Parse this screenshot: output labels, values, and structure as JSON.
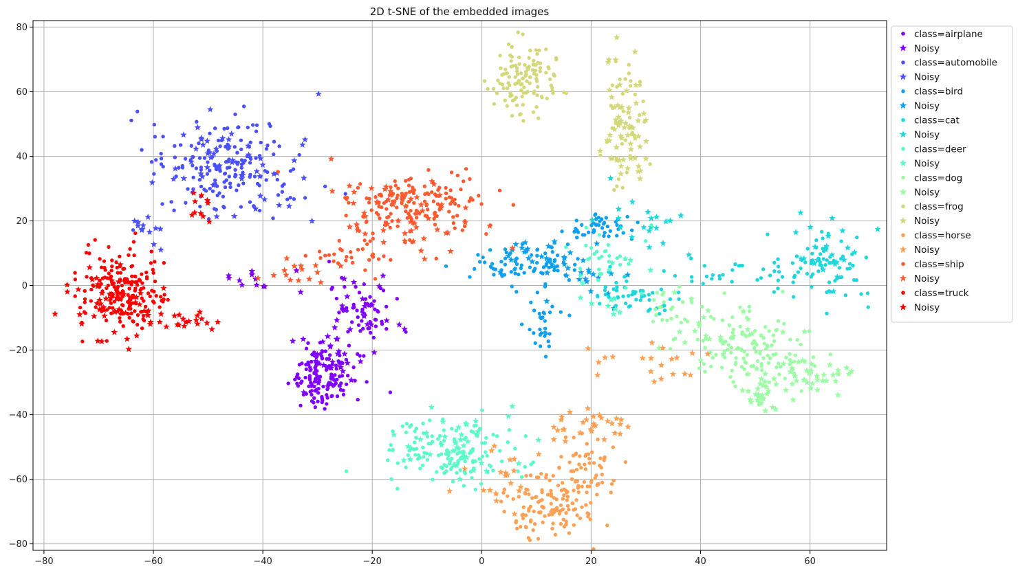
{
  "chart_data": {
    "type": "scatter",
    "title": "2D t-SNE of the embedded images",
    "xlabel": "",
    "ylabel": "",
    "xlim": [
      -82,
      74
    ],
    "ylim": [
      -82,
      82
    ],
    "xticks": [
      -80,
      -60,
      -40,
      -20,
      0,
      20,
      40,
      60
    ],
    "yticks": [
      -80,
      -60,
      -40,
      -20,
      0,
      20,
      40,
      60,
      80
    ],
    "xtick_labels": [
      "−80",
      "−60",
      "−40",
      "−20",
      "0",
      "20",
      "40",
      "60"
    ],
    "ytick_labels": [
      "−80",
      "−60",
      "−40",
      "−20",
      "0",
      "20",
      "40",
      "60",
      "80"
    ],
    "grid": true,
    "legend_position": "outside-top-right",
    "series": [
      {
        "name": "class=airplane",
        "marker": "dot",
        "color": "#8000ff",
        "clusters": [
          {
            "cx": -29,
            "cy": -28,
            "sx": 3,
            "sy": 5,
            "n": 140
          },
          {
            "cx": -22,
            "cy": -8,
            "sx": 3,
            "sy": 5,
            "n": 60
          }
        ]
      },
      {
        "name": "Noisy",
        "marker": "star",
        "color": "#8000ff",
        "clusters": [
          {
            "cx": -28,
            "cy": -25,
            "sx": 3,
            "sy": 6,
            "n": 30
          },
          {
            "cx": -40,
            "cy": 2,
            "sx": 6,
            "sy": 2,
            "n": 15
          },
          {
            "cx": -20,
            "cy": -10,
            "sx": 4,
            "sy": 4,
            "n": 15
          }
        ]
      },
      {
        "name": "class=automobile",
        "marker": "dot",
        "color": "#4c50f8",
        "clusters": [
          {
            "cx": -47,
            "cy": 36,
            "sx": 7,
            "sy": 8,
            "n": 170
          }
        ]
      },
      {
        "name": "Noisy",
        "marker": "star",
        "color": "#4c50f8",
        "clusters": [
          {
            "cx": -46,
            "cy": 38,
            "sx": 7,
            "sy": 8,
            "n": 55
          },
          {
            "cx": -62,
            "cy": 18,
            "sx": 2,
            "sy": 3,
            "n": 12
          }
        ]
      },
      {
        "name": "class=bird",
        "marker": "dot",
        "color": "#0fa0ee",
        "clusters": [
          {
            "cx": 8,
            "cy": 6,
            "sx": 5,
            "sy": 3,
            "n": 80
          },
          {
            "cx": 22,
            "cy": 18,
            "sx": 3,
            "sy": 2,
            "n": 45
          },
          {
            "cx": 11,
            "cy": -12,
            "sx": 2,
            "sy": 4,
            "n": 30
          }
        ]
      },
      {
        "name": "Noisy",
        "marker": "star",
        "color": "#0fa0ee",
        "clusters": [
          {
            "cx": 12,
            "cy": 8,
            "sx": 5,
            "sy": 3,
            "n": 25
          },
          {
            "cx": 20,
            "cy": 2,
            "sx": 4,
            "sy": 4,
            "n": 15
          }
        ]
      },
      {
        "name": "class=cat",
        "marker": "dot",
        "color": "#1fd6dc",
        "clusters": [
          {
            "cx": 62,
            "cy": 7,
            "sx": 4,
            "sy": 6,
            "n": 70
          },
          {
            "cx": 28,
            "cy": -3,
            "sx": 5,
            "sy": 3,
            "n": 50
          },
          {
            "cx": 48,
            "cy": 3,
            "sx": 6,
            "sy": 2,
            "n": 30
          }
        ]
      },
      {
        "name": "Noisy",
        "marker": "star",
        "color": "#1fd6dc",
        "clusters": [
          {
            "cx": 63,
            "cy": 10,
            "sx": 3,
            "sy": 5,
            "n": 25
          },
          {
            "cx": 30,
            "cy": 20,
            "sx": 5,
            "sy": 8,
            "n": 20
          }
        ]
      },
      {
        "name": "class=deer",
        "marker": "dot",
        "color": "#5cfac8",
        "clusters": [
          {
            "cx": -5,
            "cy": -52,
            "sx": 6,
            "sy": 5,
            "n": 140
          },
          {
            "cx": 22,
            "cy": 10,
            "sx": 4,
            "sy": 5,
            "n": 30
          }
        ]
      },
      {
        "name": "Noisy",
        "marker": "star",
        "color": "#5cfac8",
        "clusters": [
          {
            "cx": -3,
            "cy": -50,
            "sx": 6,
            "sy": 6,
            "n": 40
          },
          {
            "cx": 24,
            "cy": 0,
            "sx": 4,
            "sy": 8,
            "n": 15
          }
        ]
      },
      {
        "name": "class=dog",
        "marker": "dot",
        "color": "#9bfca4",
        "clusters": [
          {
            "cx": 50,
            "cy": -20,
            "sx": 6,
            "sy": 6,
            "n": 120
          },
          {
            "cx": 38,
            "cy": -8,
            "sx": 4,
            "sy": 4,
            "n": 30
          }
        ]
      },
      {
        "name": "Noisy",
        "marker": "star",
        "color": "#9bfca4",
        "clusters": [
          {
            "cx": 60,
            "cy": -28,
            "sx": 4,
            "sy": 3,
            "n": 40
          },
          {
            "cx": 51,
            "cy": -34,
            "sx": 1.5,
            "sy": 3,
            "n": 25
          },
          {
            "cx": 44,
            "cy": -15,
            "sx": 6,
            "sy": 6,
            "n": 25
          }
        ]
      },
      {
        "name": "class=frog",
        "marker": "dot",
        "color": "#d3d97a",
        "clusters": [
          {
            "cx": 8,
            "cy": 64,
            "sx": 3,
            "sy": 5,
            "n": 120
          },
          {
            "cx": 26,
            "cy": 50,
            "sx": 2,
            "sy": 10,
            "n": 40
          }
        ]
      },
      {
        "name": "Noisy",
        "marker": "star",
        "color": "#d3d97a",
        "clusters": [
          {
            "cx": 26,
            "cy": 50,
            "sx": 2,
            "sy": 10,
            "n": 60
          }
        ]
      },
      {
        "name": "class=horse",
        "marker": "dot",
        "color": "#ffa055",
        "clusters": [
          {
            "cx": 12,
            "cy": -68,
            "sx": 4,
            "sy": 5,
            "n": 120
          },
          {
            "cx": 19,
            "cy": -58,
            "sx": 3,
            "sy": 5,
            "n": 60
          }
        ]
      },
      {
        "name": "Noisy",
        "marker": "star",
        "color": "#ffa055",
        "clusters": [
          {
            "cx": 20,
            "cy": -42,
            "sx": 5,
            "sy": 3,
            "n": 30
          },
          {
            "cx": 30,
            "cy": -24,
            "sx": 6,
            "sy": 3,
            "n": 20
          },
          {
            "cx": 5,
            "cy": -60,
            "sx": 4,
            "sy": 5,
            "n": 20
          }
        ]
      },
      {
        "name": "class=ship",
        "marker": "dot",
        "color": "#ff5a30",
        "clusters": [
          {
            "cx": -12,
            "cy": 25,
            "sx": 7,
            "sy": 5,
            "n": 160
          },
          {
            "cx": -24,
            "cy": 10,
            "sx": 4,
            "sy": 3,
            "n": 30
          }
        ]
      },
      {
        "name": "Noisy",
        "marker": "star",
        "color": "#ff5a30",
        "clusters": [
          {
            "cx": -14,
            "cy": 22,
            "sx": 7,
            "sy": 6,
            "n": 55
          },
          {
            "cx": -35,
            "cy": 5,
            "sx": 4,
            "sy": 2,
            "n": 15
          }
        ]
      },
      {
        "name": "class=truck",
        "marker": "dot",
        "color": "#ff0000",
        "clusters": [
          {
            "cx": -66,
            "cy": -2,
            "sx": 4,
            "sy": 6,
            "n": 190
          }
        ]
      },
      {
        "name": "Noisy",
        "marker": "star",
        "color": "#ff0000",
        "clusters": [
          {
            "cx": -68,
            "cy": -4,
            "sx": 4,
            "sy": 6,
            "n": 50
          },
          {
            "cx": -55,
            "cy": -11,
            "sx": 4,
            "sy": 1.5,
            "n": 25
          },
          {
            "cx": -52,
            "cy": 27,
            "sx": 3,
            "sy": 5,
            "n": 10
          }
        ]
      }
    ]
  }
}
